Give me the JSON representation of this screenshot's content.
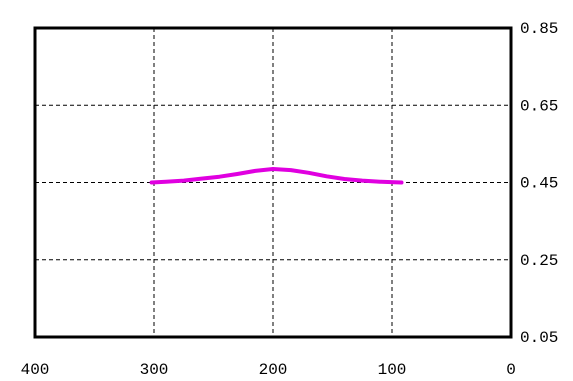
{
  "chart_data": {
    "type": "line",
    "title": "",
    "xlabel": "",
    "ylabel": "",
    "x_reversed": true,
    "xlim": [
      400,
      0
    ],
    "ylim": [
      0.05,
      0.85
    ],
    "x_ticks": [
      400,
      300,
      200,
      100,
      0
    ],
    "x_tick_labels": [
      "400",
      "300",
      "200",
      "100",
      "0"
    ],
    "y_ticks": [
      0.05,
      0.25,
      0.45,
      0.65,
      0.85
    ],
    "y_tick_labels": [
      "0.05",
      "0.25",
      "0.45",
      "0.65",
      "0.85"
    ],
    "y_axis_side": "right",
    "grid": true,
    "grid_style": "dashed",
    "legend": "none",
    "series": [
      {
        "color": "#e000e0",
        "x": [
          302,
          290,
          275,
          260,
          245,
          230,
          215,
          200,
          185,
          170,
          155,
          140,
          125,
          110,
          92
        ],
        "y": [
          0.45,
          0.452,
          0.455,
          0.46,
          0.465,
          0.472,
          0.48,
          0.485,
          0.482,
          0.475,
          0.466,
          0.459,
          0.455,
          0.452,
          0.45
        ]
      }
    ]
  }
}
